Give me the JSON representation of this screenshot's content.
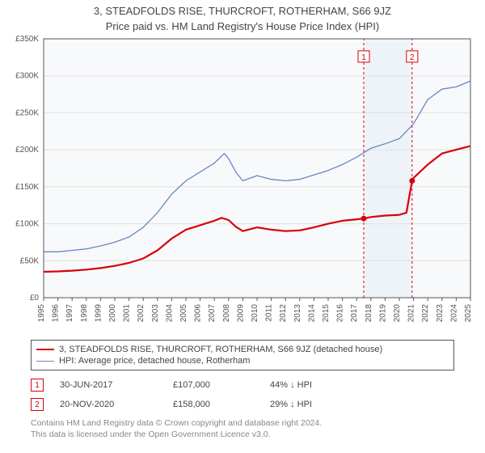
{
  "title_line1": "3, STEADFOLDS RISE, THURCROFT, ROTHERHAM, S66 9JZ",
  "title_line2": "Price paid vs. HM Land Registry's House Price Index (HPI)",
  "title_fontsize": 13,
  "chart": {
    "type": "line",
    "plot_bg": "#f8f9fa",
    "grid_color": "#e0e0e0",
    "axis_color": "#555555",
    "tick_fontsize": 10,
    "tick_color": "#555555",
    "x": {
      "min": 1995,
      "max": 2025,
      "ticks": [
        1995,
        1996,
        1997,
        1998,
        1999,
        2000,
        2001,
        2002,
        2003,
        2004,
        2005,
        2006,
        2007,
        2008,
        2009,
        2010,
        2011,
        2012,
        2013,
        2014,
        2015,
        2016,
        2017,
        2018,
        2019,
        2020,
        2021,
        2022,
        2023,
        2024,
        2025
      ],
      "label_rotation": -90
    },
    "y": {
      "min": 0,
      "max": 350000,
      "ticks": [
        0,
        50000,
        100000,
        150000,
        200000,
        250000,
        300000,
        350000
      ],
      "tick_labels": [
        "£0",
        "£50K",
        "£100K",
        "£150K",
        "£200K",
        "£250K",
        "£300K",
        "£350K"
      ],
      "grid": true
    },
    "series": [
      {
        "name": "price_paid",
        "label": "3, STEADFOLDS RISE, THURCROFT, ROTHERHAM, S66 9JZ (detached house)",
        "color": "#d8000c",
        "width": 2.2,
        "points": [
          [
            1995,
            35000
          ],
          [
            1996,
            35500
          ],
          [
            1997,
            36500
          ],
          [
            1998,
            38000
          ],
          [
            1999,
            40000
          ],
          [
            2000,
            43000
          ],
          [
            2001,
            47000
          ],
          [
            2002,
            53000
          ],
          [
            2003,
            64000
          ],
          [
            2004,
            80000
          ],
          [
            2005,
            92000
          ],
          [
            2006,
            98000
          ],
          [
            2007,
            104000
          ],
          [
            2007.5,
            108000
          ],
          [
            2008,
            105000
          ],
          [
            2008.5,
            96000
          ],
          [
            2009,
            90000
          ],
          [
            2010,
            95000
          ],
          [
            2011,
            92000
          ],
          [
            2012,
            90000
          ],
          [
            2013,
            91000
          ],
          [
            2014,
            95000
          ],
          [
            2015,
            100000
          ],
          [
            2016,
            104000
          ],
          [
            2017,
            106000
          ],
          [
            2017.5,
            107000
          ],
          [
            2018,
            109000
          ],
          [
            2019,
            111000
          ],
          [
            2020,
            112000
          ],
          [
            2020.5,
            115000
          ],
          [
            2020.9,
            158000
          ],
          [
            2021,
            162000
          ],
          [
            2022,
            180000
          ],
          [
            2023,
            195000
          ],
          [
            2024,
            200000
          ],
          [
            2025,
            205000
          ]
        ]
      },
      {
        "name": "hpi",
        "label": "HPI: Average price, detached house, Rotherham",
        "color": "#6788c0",
        "width": 1.3,
        "points": [
          [
            1995,
            62000
          ],
          [
            1996,
            62000
          ],
          [
            1997,
            64000
          ],
          [
            1998,
            66000
          ],
          [
            1999,
            70000
          ],
          [
            2000,
            75000
          ],
          [
            2001,
            82000
          ],
          [
            2002,
            95000
          ],
          [
            2003,
            115000
          ],
          [
            2004,
            140000
          ],
          [
            2005,
            158000
          ],
          [
            2006,
            170000
          ],
          [
            2007,
            182000
          ],
          [
            2007.7,
            195000
          ],
          [
            2008,
            188000
          ],
          [
            2008.5,
            170000
          ],
          [
            2009,
            158000
          ],
          [
            2010,
            165000
          ],
          [
            2011,
            160000
          ],
          [
            2012,
            158000
          ],
          [
            2013,
            160000
          ],
          [
            2014,
            166000
          ],
          [
            2015,
            172000
          ],
          [
            2016,
            180000
          ],
          [
            2017,
            190000
          ],
          [
            2018,
            202000
          ],
          [
            2019,
            208000
          ],
          [
            2020,
            215000
          ],
          [
            2021,
            235000
          ],
          [
            2022,
            268000
          ],
          [
            2023,
            282000
          ],
          [
            2024,
            285000
          ],
          [
            2025,
            293000
          ]
        ]
      }
    ],
    "markers": [
      {
        "badge": "1",
        "color": "#d8000c",
        "x": 2017.5,
        "y": 107000,
        "guide_y1": 0,
        "guide_y2": 350000,
        "badge_y": 325000,
        "band": {
          "x0": 2017.5,
          "x1": 2020.9,
          "fill": "#e8eef7",
          "opacity": 0.6
        }
      },
      {
        "badge": "2",
        "color": "#d8000c",
        "x": 2020.9,
        "y": 158000,
        "guide_y1": 0,
        "guide_y2": 350000,
        "badge_y": 325000
      }
    ],
    "guide_dash": "3,3"
  },
  "legend": {
    "border_color": "#555555",
    "fontsize": 11,
    "rows": [
      {
        "color": "#d8000c",
        "width": 2.2,
        "label": "3, STEADFOLDS RISE, THURCROFT, ROTHERHAM, S66 9JZ (detached house)"
      },
      {
        "color": "#6788c0",
        "width": 1.3,
        "label": "HPI: Average price, detached house, Rotherham"
      }
    ]
  },
  "annotations": [
    {
      "badge": "1",
      "color": "#d8000c",
      "date": "30-JUN-2017",
      "price": "£107,000",
      "pct": "44% ↓ HPI"
    },
    {
      "badge": "2",
      "color": "#d8000c",
      "date": "20-NOV-2020",
      "price": "£158,000",
      "pct": "29% ↓ HPI"
    }
  ],
  "footer": {
    "line1": "Contains HM Land Registry data © Crown copyright and database right 2024.",
    "line2": "This data is licensed under the Open Government Licence v3.0.",
    "color": "#888888",
    "fontsize": 10.5
  }
}
